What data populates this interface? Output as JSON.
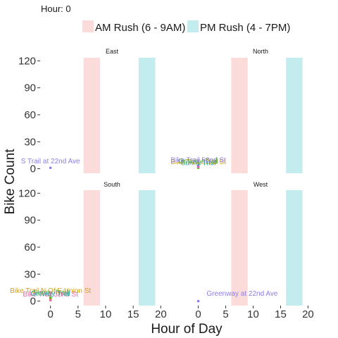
{
  "chart_data": {
    "type": "scatter",
    "subtitle": "Hour: 0",
    "xlabel": "Hour of Day",
    "ylabel": "Bike Count",
    "xlim": [
      -2,
      22
    ],
    "ylim": [
      -5,
      125
    ],
    "x_ticks": [
      0,
      5,
      10,
      15,
      20
    ],
    "y_ticks": [
      0,
      30,
      60,
      90,
      120
    ],
    "grid": false,
    "legend_position": "top",
    "legend": [
      {
        "label": "AM Rush (6 - 9AM)",
        "color": "#fcdcda"
      },
      {
        "label": "PM Rush (4 - 7PM)",
        "color": "#c3ecef"
      }
    ],
    "bands": [
      {
        "name": "am",
        "from": 6,
        "to": 9
      },
      {
        "name": "pm",
        "from": 16,
        "to": 19
      }
    ],
    "panels": [
      {
        "title": "East",
        "points": [
          {
            "x": 0,
            "y": 1,
            "color": "#8b7fe8"
          }
        ],
        "labels": [
          {
            "text": "S Trail at 22nd Ave",
            "x": 0,
            "y": 6,
            "color": "#8b7fe8"
          }
        ]
      },
      {
        "title": "North",
        "points": [
          {
            "x": 0,
            "y": 2,
            "color": "#2ca89a"
          },
          {
            "x": 0,
            "y": 3,
            "color": "#d4a017"
          },
          {
            "x": 0,
            "y": 4,
            "color": "#8b7fe8"
          },
          {
            "x": 0,
            "y": 1,
            "color": "#5fae2e"
          },
          {
            "x": 0,
            "y": 2,
            "color": "#e06ca8"
          }
        ],
        "labels": [
          {
            "text": "Bike Trail 52nd St",
            "x": 0,
            "y": 5,
            "color": "#d4a017"
          },
          {
            "text": "Sunny Trail",
            "x": 0,
            "y": 4,
            "color": "#2ca89a"
          },
          {
            "text": "Grnway Trail",
            "x": 0,
            "y": 6,
            "color": "#5fae2e"
          },
          {
            "text": "Bike Trail 52nd St",
            "x": 0,
            "y": 7,
            "color": "#8b7fe8"
          }
        ]
      },
      {
        "title": "South",
        "points": [
          {
            "x": 0,
            "y": 3,
            "color": "#2ca89a"
          },
          {
            "x": 0,
            "y": 2,
            "color": "#d4a017"
          },
          {
            "x": 0,
            "y": 1,
            "color": "#e06ca8"
          },
          {
            "x": 0,
            "y": 4,
            "color": "#5fae2e"
          }
        ],
        "labels": [
          {
            "text": "Bike Trail N Of E Union St",
            "x": 0,
            "y": 9,
            "color": "#d4a017"
          },
          {
            "text": "Sunny Trail",
            "x": 0,
            "y": 7,
            "color": "#5fae2e"
          },
          {
            "text": "Bike Trail 52nd St",
            "x": 0,
            "y": 5,
            "color": "#e06ca8"
          },
          {
            "text": "Grnway Trail",
            "x": 0,
            "y": 6,
            "color": "#2ca89a"
          }
        ]
      },
      {
        "title": "West",
        "points": [
          {
            "x": 0,
            "y": 0,
            "color": "#8b7fe8"
          }
        ],
        "labels": [
          {
            "text": "Greenway at 22nd Ave",
            "x": 8,
            "y": 6,
            "color": "#8b7fe8"
          }
        ]
      }
    ]
  }
}
